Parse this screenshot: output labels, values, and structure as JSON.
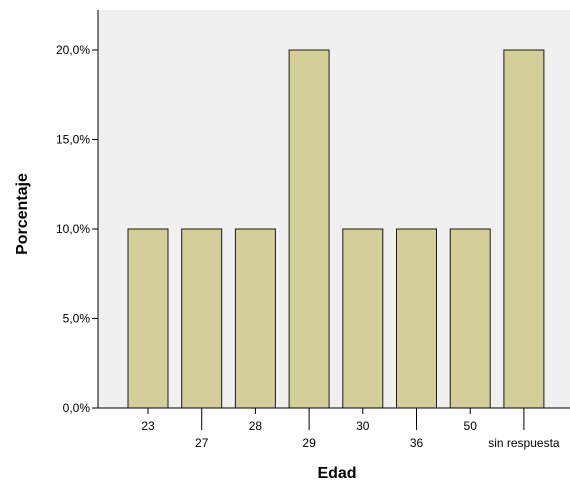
{
  "chart_data": {
    "type": "bar",
    "title": "",
    "xlabel": "Edad",
    "ylabel": "Porcentaje",
    "categories": [
      "23",
      "27",
      "28",
      "29",
      "30",
      "36",
      "50",
      "sin respuesta"
    ],
    "values": [
      10,
      10,
      10,
      20,
      10,
      10,
      10,
      20
    ],
    "ylim": [
      0,
      22
    ],
    "yticks": [
      0,
      5,
      10,
      15,
      20
    ],
    "ytick_labels": [
      "0,0%",
      "5,0%",
      "10,0%",
      "15,0%",
      "20,0%"
    ],
    "grid": false,
    "legend": "none",
    "colors": {
      "bar_fill": "#d4cf98",
      "bar_stroke": "#1a1a1a",
      "plot_background": "#f0f0f0",
      "axis": "#000000"
    }
  }
}
